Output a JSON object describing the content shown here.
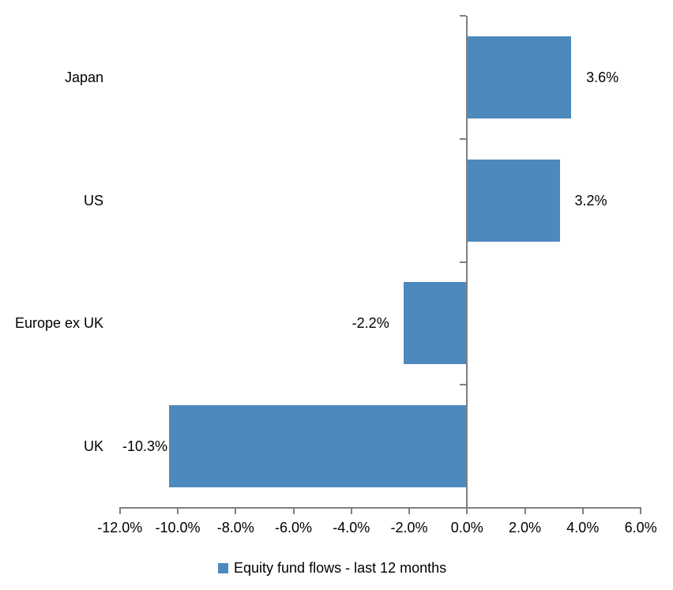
{
  "page": {
    "background": "#ffffff"
  },
  "chart_data": {
    "type": "bar",
    "orientation": "horizontal",
    "categories": [
      "Japan",
      "US",
      "Europe ex UK",
      "UK"
    ],
    "series": [
      {
        "name": "Equity fund flows - last 12 months",
        "values": [
          3.6,
          3.2,
          -2.2,
          -10.3
        ],
        "value_labels": [
          "3.6%",
          "3.2%",
          "-2.2%",
          "-10.3%"
        ],
        "color": "#4D89BD"
      }
    ],
    "xlim": [
      -12,
      6
    ],
    "x_ticks": [
      {
        "value": -12,
        "label": "-12.0%"
      },
      {
        "value": -10,
        "label": "-10.0%"
      },
      {
        "value": -8,
        "label": "-8.0%"
      },
      {
        "value": -6,
        "label": "-6.0%"
      },
      {
        "value": -4,
        "label": "-4.0%"
      },
      {
        "value": -2,
        "label": "-2.0%"
      },
      {
        "value": 0,
        "label": "0.0%"
      },
      {
        "value": 2,
        "label": "2.0%"
      },
      {
        "value": 4,
        "label": "4.0%"
      },
      {
        "value": 6,
        "label": "6.0%"
      }
    ],
    "grid": false,
    "legend": "Equity fund flows - last 12 months",
    "legend_position": "bottom",
    "axis_color": "#808080",
    "text_color": "#000000"
  }
}
